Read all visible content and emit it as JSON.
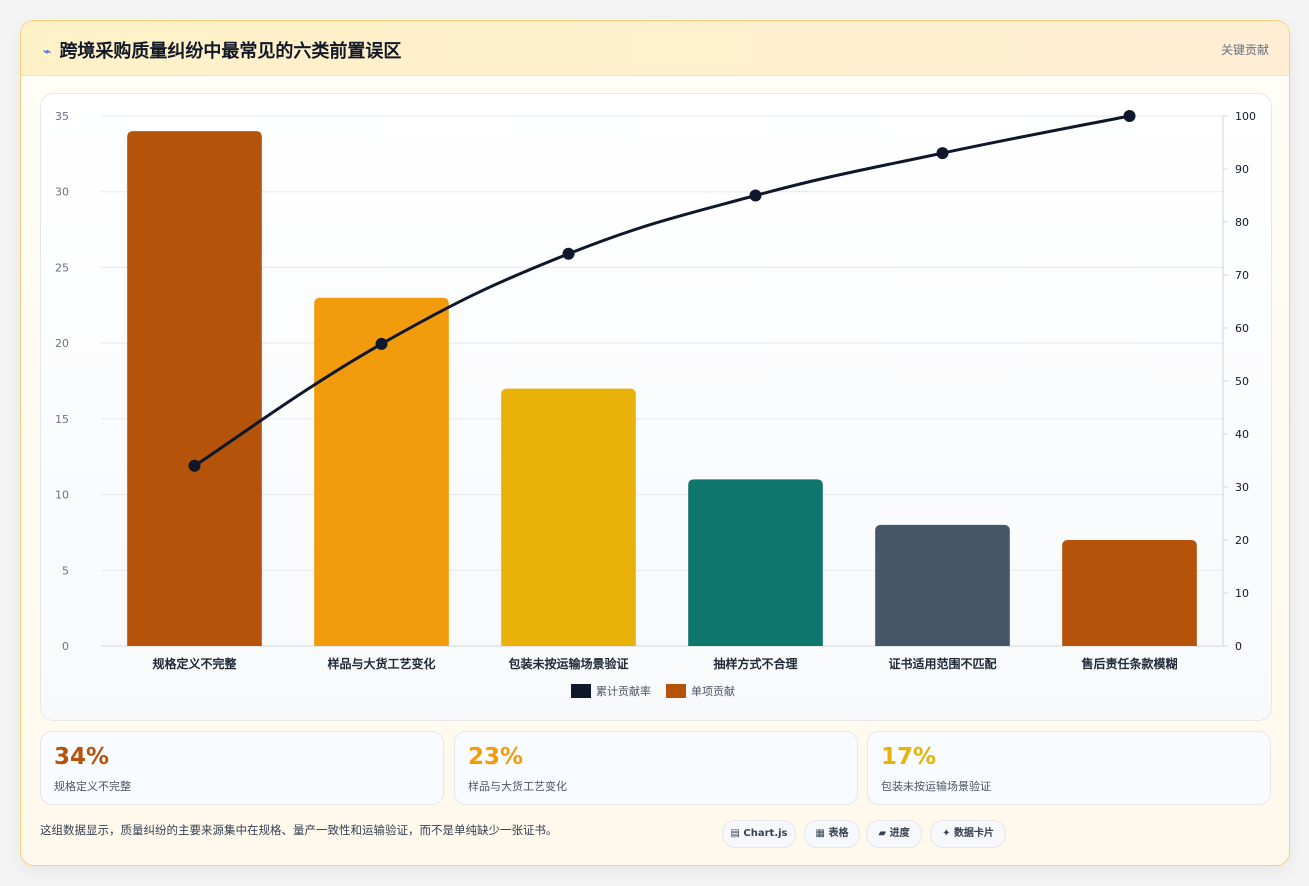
{
  "header": {
    "title": "跨境采购质量纠纷中最常见的六类前置误区",
    "title_icon": "lightning-icon",
    "right_label": "关键贡献"
  },
  "chart_data": {
    "type": "bar",
    "categories": [
      "规格定义不完整",
      "样品与大货工艺变化",
      "包装未按运输场景验证",
      "抽样方式不合理",
      "证书适用范围不匹配",
      "售后责任条款模糊"
    ],
    "series": [
      {
        "name": "单项贡献",
        "type": "bar",
        "axis": "left",
        "values": [
          34,
          23,
          17,
          11,
          8,
          7
        ],
        "colors": [
          "#b45309",
          "#f29b0c",
          "#e8b20a",
          "#0f766e",
          "#475569",
          "#b45309"
        ]
      },
      {
        "name": "累计贡献率",
        "type": "line",
        "axis": "right",
        "values": [
          34,
          57,
          74,
          85,
          93,
          100
        ],
        "color": "#0f172a"
      }
    ],
    "ylim_left": [
      0,
      35
    ],
    "yticks_left": [
      "0",
      "5",
      "10",
      "15",
      "20",
      "25",
      "30",
      "35"
    ],
    "ylim_right": [
      0,
      100
    ],
    "yticks_right": [
      "0",
      "10",
      "20",
      "30",
      "40",
      "50",
      "60",
      "70",
      "80",
      "90",
      "100"
    ],
    "legend_position": "bottom",
    "grid": true
  },
  "legend": [
    {
      "label": "累计贡献率",
      "color": "#0f172a"
    },
    {
      "label": "单项贡献",
      "color": "#b45309"
    }
  ],
  "stats": [
    {
      "value": "34%",
      "label": "规格定义不完整",
      "color": "#b45309"
    },
    {
      "value": "23%",
      "label": "样品与大货工艺变化",
      "color": "#f29b0c"
    },
    {
      "value": "17%",
      "label": "包装未按运输场景验证",
      "color": "#e8b20a"
    }
  ],
  "footer": {
    "note": "这组数据显示，质量纠纷的主要来源集中在规格、量产一致性和运输验证，而不是单纯缺少一张证书。",
    "chips": [
      {
        "icon": "chart-icon",
        "glyph": "▤",
        "label": "Chart.js"
      },
      {
        "icon": "table-icon",
        "glyph": "▦",
        "label": "表格"
      },
      {
        "icon": "progress-icon",
        "glyph": "▰",
        "label": "进度"
      },
      {
        "icon": "data-card-icon",
        "glyph": "✦",
        "label": "数据卡片"
      }
    ]
  }
}
